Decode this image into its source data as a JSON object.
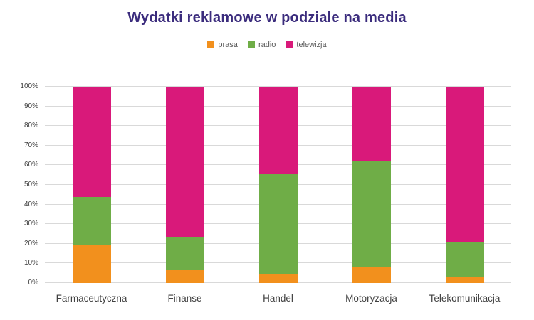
{
  "title": "Wydatki reklamowe w podziale na media",
  "chart_data": {
    "type": "bar",
    "stacked": true,
    "normalized": "percent",
    "title": "Wydatki reklamowe w podziale na media",
    "categories": [
      "Farmaceutyczna",
      "Finanse",
      "Handel",
      "Motoryzacja",
      "Telekomunikacja"
    ],
    "series": [
      {
        "name": "prasa",
        "color": "#F2901D",
        "values": [
          19.5,
          7.0,
          4.5,
          8.5,
          3.0
        ]
      },
      {
        "name": "radio",
        "color": "#6FAD47",
        "values": [
          24.5,
          16.5,
          51.0,
          53.5,
          17.5
        ]
      },
      {
        "name": "telewizja",
        "color": "#D9197A",
        "values": [
          56.0,
          76.5,
          44.5,
          38.0,
          79.5
        ]
      }
    ],
    "xlabel": "",
    "ylabel": "",
    "ylim": [
      0,
      100
    ],
    "yticks": [
      "0%",
      "10%",
      "20%",
      "30%",
      "40%",
      "50%",
      "60%",
      "70%",
      "80%",
      "90%",
      "100%"
    ],
    "grid": true,
    "legend_position": "top"
  },
  "colors": {
    "title_text": "#3B2C7D",
    "axis_text": "#404040",
    "legend_text": "#595959",
    "gridline": "#D9D9D9",
    "background": "#FFFFFF"
  }
}
